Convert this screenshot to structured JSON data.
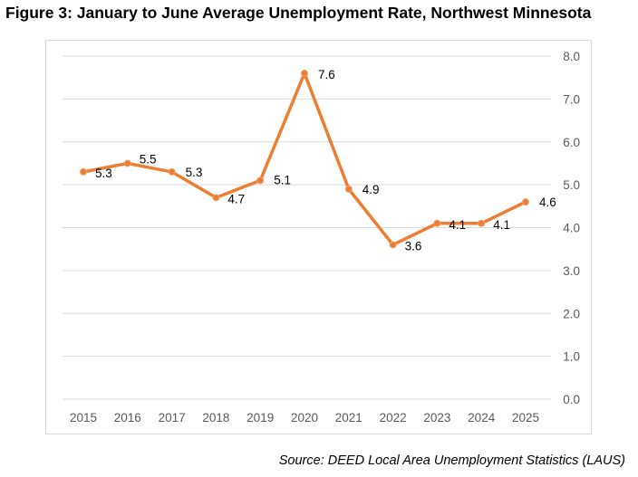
{
  "chart_data": {
    "type": "line",
    "title": "Figure 3: January to June Average Unemployment Rate, Northwest Minnesota",
    "categories": [
      "2015",
      "2016",
      "2017",
      "2018",
      "2019",
      "2020",
      "2021",
      "2022",
      "2023",
      "2024",
      "2025"
    ],
    "series": [
      {
        "name": "Unemployment Rate",
        "values": [
          5.3,
          5.5,
          5.3,
          4.7,
          5.1,
          7.6,
          4.9,
          3.6,
          4.1,
          4.1,
          4.6
        ],
        "color": "#ed7d31"
      }
    ],
    "data_labels": [
      "5.3",
      "5.5",
      "5.3",
      "4.7",
      "5.1",
      "7.6",
      "4.9",
      "3.6",
      "4.1",
      "4.1",
      "4.6"
    ],
    "yticks": [
      "0.0",
      "1.0",
      "2.0",
      "3.0",
      "4.0",
      "5.0",
      "6.0",
      "7.0",
      "8.0"
    ],
    "ylim": [
      0,
      8
    ],
    "y_axis_side": "right",
    "grid": true,
    "xlabel": "",
    "ylabel": "",
    "source": "Source: DEED Local Area Unemployment Statistics (LAUS)"
  }
}
